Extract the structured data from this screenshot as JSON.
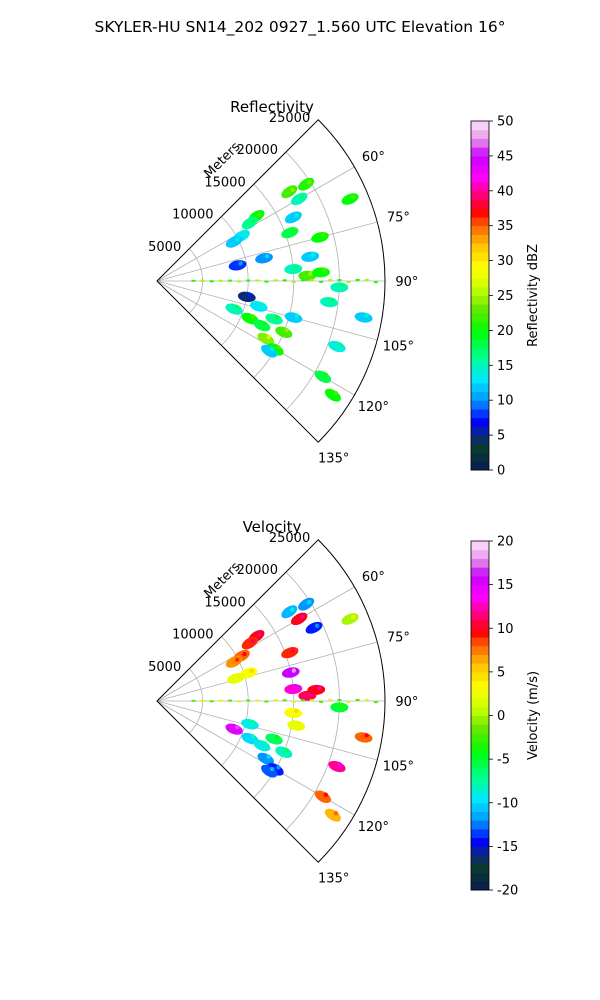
{
  "figure_title": "SKYLER-HU  SN14_202  0927_1.560 UTC Elevation 16°",
  "chart_data": [
    {
      "type": "polar-sector",
      "title": "Reflectivity",
      "range_label": "Meters",
      "range_ticks": [
        5000,
        10000,
        15000,
        20000,
        25000
      ],
      "range_max": 25000,
      "angle_ticks": [
        "60°",
        "75°",
        "90°",
        "105°",
        "120°",
        "135°"
      ],
      "angle_range_deg": [
        45,
        135
      ],
      "grid": true,
      "colorbar": {
        "label": "Reflectivity dBZ",
        "min": 0,
        "max": 50,
        "ticks": [
          0,
          5,
          10,
          15,
          20,
          25,
          30,
          35,
          40,
          45,
          50
        ]
      },
      "echoes": [
        {
          "az": 57,
          "r": 13000,
          "v": 20
        },
        {
          "az": 58,
          "r": 12000,
          "v": 16
        },
        {
          "az": 62,
          "r": 10500,
          "v": 13
        },
        {
          "az": 63,
          "r": 9500,
          "v": 12
        },
        {
          "az": 56,
          "r": 17500,
          "v": 22
        },
        {
          "az": 57,
          "r": 19500,
          "v": 21
        },
        {
          "az": 60,
          "r": 18000,
          "v": 15
        },
        {
          "az": 65,
          "r": 16500,
          "v": 12
        },
        {
          "az": 70,
          "r": 15500,
          "v": 18
        },
        {
          "az": 75,
          "r": 18500,
          "v": 20
        },
        {
          "az": 78,
          "r": 12000,
          "v": 10
        },
        {
          "az": 79,
          "r": 9000,
          "v": 8
        },
        {
          "az": 85,
          "r": 15000,
          "v": 15
        },
        {
          "az": 88,
          "r": 16500,
          "v": 22
        },
        {
          "az": 87,
          "r": 18000,
          "v": 20
        },
        {
          "az": 81,
          "r": 17000,
          "v": 12
        },
        {
          "az": 100,
          "r": 10000,
          "v": 5
        },
        {
          "az": 104,
          "r": 11500,
          "v": 13
        },
        {
          "az": 108,
          "r": 13500,
          "v": 16
        },
        {
          "az": 110,
          "r": 9000,
          "v": 15
        },
        {
          "az": 112,
          "r": 11000,
          "v": 20
        },
        {
          "az": 113,
          "r": 12500,
          "v": 18
        },
        {
          "az": 112,
          "r": 15000,
          "v": 22
        },
        {
          "az": 118,
          "r": 13500,
          "v": 24
        },
        {
          "az": 120,
          "r": 15000,
          "v": 20
        },
        {
          "az": 122,
          "r": 14500,
          "v": 12
        },
        {
          "az": 105,
          "r": 15500,
          "v": 12
        },
        {
          "az": 97,
          "r": 19000,
          "v": 15
        },
        {
          "az": 110,
          "r": 21000,
          "v": 14
        },
        {
          "az": 120,
          "r": 21000,
          "v": 18
        },
        {
          "az": 123,
          "r": 23000,
          "v": 20
        },
        {
          "az": 100,
          "r": 23000,
          "v": 12
        },
        {
          "az": 67,
          "r": 23000,
          "v": 20
        },
        {
          "az": 92,
          "r": 20000,
          "v": 15
        }
      ]
    },
    {
      "type": "polar-sector",
      "title": "Velocity",
      "range_label": "Meters",
      "range_ticks": [
        5000,
        10000,
        15000,
        20000,
        25000
      ],
      "range_max": 25000,
      "angle_ticks": [
        "60°",
        "75°",
        "90°",
        "105°",
        "120°",
        "135°"
      ],
      "angle_range_deg": [
        45,
        135
      ],
      "grid": true,
      "colorbar": {
        "label": "Velocity (m/s)",
        "min": -20,
        "max": 20,
        "ticks": [
          -20,
          -15,
          -10,
          -5,
          0,
          5,
          10,
          15,
          20
        ]
      },
      "echoes": [
        {
          "az": 57,
          "r": 13000,
          "v": 10
        },
        {
          "az": 58,
          "r": 12000,
          "v": 9
        },
        {
          "az": 62,
          "r": 10500,
          "v": 8
        },
        {
          "az": 63,
          "r": 9500,
          "v": 7
        },
        {
          "az": 73,
          "r": 10500,
          "v": 3
        },
        {
          "az": 74,
          "r": 9000,
          "v": 2
        },
        {
          "az": 56,
          "r": 17500,
          "v": -11
        },
        {
          "az": 57,
          "r": 19500,
          "v": -12
        },
        {
          "az": 60,
          "r": 18000,
          "v": 10
        },
        {
          "az": 70,
          "r": 15500,
          "v": 9
        },
        {
          "az": 65,
          "r": 19000,
          "v": -14
        },
        {
          "az": 78,
          "r": 15000,
          "v": 16
        },
        {
          "az": 85,
          "r": 15000,
          "v": 13
        },
        {
          "az": 88,
          "r": 16500,
          "v": 11
        },
        {
          "az": 86,
          "r": 17500,
          "v": 10
        },
        {
          "az": 95,
          "r": 15000,
          "v": 3
        },
        {
          "az": 100,
          "r": 15500,
          "v": 2
        },
        {
          "az": 104,
          "r": 10500,
          "v": -9
        },
        {
          "az": 108,
          "r": 13500,
          "v": -6
        },
        {
          "az": 110,
          "r": 9000,
          "v": 15
        },
        {
          "az": 112,
          "r": 11000,
          "v": -10
        },
        {
          "az": 113,
          "r": 12500,
          "v": -9
        },
        {
          "az": 112,
          "r": 15000,
          "v": -8
        },
        {
          "az": 118,
          "r": 13500,
          "v": -12
        },
        {
          "az": 120,
          "r": 15000,
          "v": -14
        },
        {
          "az": 122,
          "r": 14500,
          "v": -13
        },
        {
          "az": 110,
          "r": 21000,
          "v": 12
        },
        {
          "az": 120,
          "r": 21000,
          "v": 8
        },
        {
          "az": 123,
          "r": 23000,
          "v": 6
        },
        {
          "az": 100,
          "r": 23000,
          "v": 8
        },
        {
          "az": 67,
          "r": 23000,
          "v": 0
        },
        {
          "az": 92,
          "r": 20000,
          "v": -5
        }
      ]
    }
  ]
}
